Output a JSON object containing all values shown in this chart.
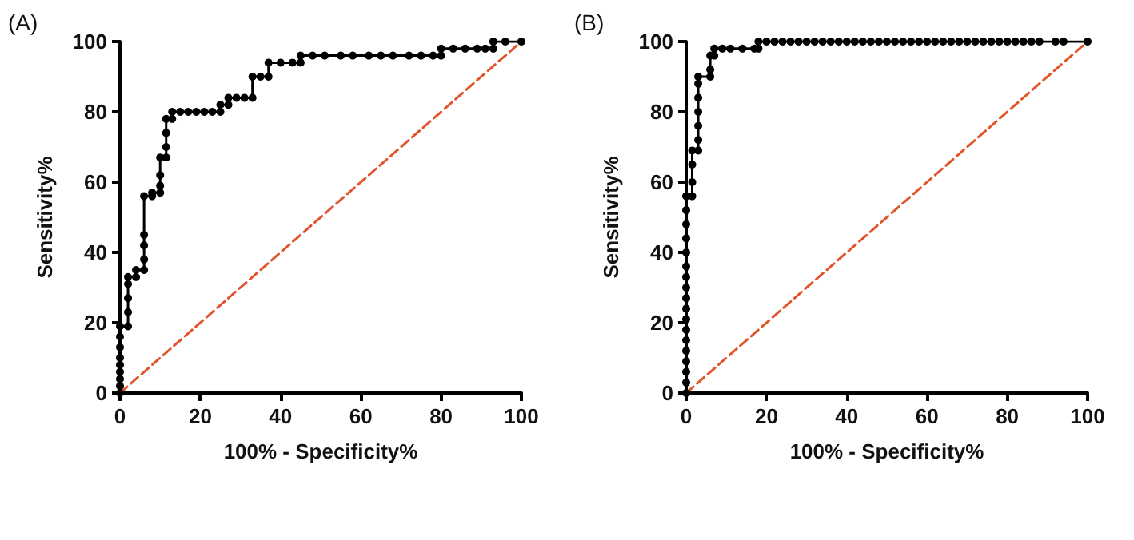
{
  "chart_data": [
    {
      "type": "line",
      "title": "(A)",
      "xlabel": "100% - Specificity%",
      "ylabel": "Sensitivity%",
      "xlim": [
        0,
        100
      ],
      "ylim": [
        0,
        100
      ],
      "xticks": [
        0,
        20,
        40,
        60,
        80,
        100
      ],
      "yticks": [
        0,
        20,
        40,
        60,
        80,
        100
      ],
      "grid": false,
      "series": [
        {
          "color": "#000000",
          "marker": "circle",
          "line_style": "solid",
          "x": [
            0,
            0,
            0,
            0,
            0,
            0,
            0,
            0,
            0,
            2,
            2,
            2,
            2,
            2,
            4,
            4,
            6,
            6,
            6,
            6,
            6,
            8,
            8,
            10,
            10,
            10,
            10,
            11.5,
            11.5,
            11.5,
            11.5,
            13,
            13,
            15,
            17,
            19,
            21,
            23,
            25,
            25,
            27,
            27,
            29,
            31,
            33,
            33,
            35,
            37,
            37,
            40,
            43,
            45,
            45,
            48,
            51,
            55,
            58,
            62,
            65,
            68,
            72,
            75,
            78,
            80,
            80,
            83,
            86,
            89,
            91,
            93,
            93,
            96,
            100
          ],
          "values": [
            0,
            2,
            4,
            6,
            8,
            10,
            13,
            16,
            19,
            19,
            23,
            27,
            31,
            33,
            33,
            35,
            35,
            38,
            42,
            45,
            56,
            56,
            57,
            57,
            59,
            62,
            67,
            67,
            70,
            74,
            78,
            78,
            80,
            80,
            80,
            80,
            80,
            80,
            80,
            82,
            82,
            84,
            84,
            84,
            84,
            90,
            90,
            90,
            94,
            94,
            94,
            94,
            96,
            96,
            96,
            96,
            96,
            96,
            96,
            96,
            96,
            96,
            96,
            96,
            98,
            98,
            98,
            98,
            98,
            98,
            100,
            100,
            100
          ]
        },
        {
          "color": "#e2542a",
          "marker": "none",
          "line_style": "dashed",
          "x": [
            0,
            100
          ],
          "values": [
            0,
            100
          ]
        }
      ]
    },
    {
      "type": "line",
      "title": "(B)",
      "xlabel": "100% - Specificity%",
      "ylabel": "Sensitivity%",
      "xlim": [
        0,
        100
      ],
      "ylim": [
        0,
        100
      ],
      "xticks": [
        0,
        20,
        40,
        60,
        80,
        100
      ],
      "yticks": [
        0,
        20,
        40,
        60,
        80,
        100
      ],
      "grid": false,
      "series": [
        {
          "color": "#000000",
          "marker": "circle",
          "line_style": "solid",
          "x": [
            0,
            0,
            0,
            0,
            0,
            0,
            0,
            0,
            0,
            0,
            0,
            0,
            0,
            0,
            0,
            0,
            0,
            0,
            1.5,
            1.5,
            1.5,
            1.5,
            3,
            3,
            3,
            3,
            3,
            3,
            3,
            6,
            6,
            6,
            7,
            7,
            9,
            11,
            14,
            17,
            18,
            18,
            20,
            22,
            24,
            26,
            28,
            30,
            32,
            34,
            36,
            38,
            40,
            42,
            44,
            46,
            48,
            50,
            52,
            54,
            56,
            58,
            60,
            62,
            64,
            66,
            68,
            70,
            72,
            74,
            76,
            78,
            80,
            82,
            84,
            86,
            88,
            92,
            94,
            100
          ],
          "values": [
            0,
            3,
            6,
            9,
            12,
            15,
            18,
            21,
            24,
            27,
            30,
            33,
            36,
            40,
            44,
            48,
            52,
            56,
            56,
            60,
            65,
            69,
            69,
            72,
            76,
            80,
            84,
            88,
            90,
            90,
            92,
            96,
            96,
            98,
            98,
            98,
            98,
            98,
            98,
            100,
            100,
            100,
            100,
            100,
            100,
            100,
            100,
            100,
            100,
            100,
            100,
            100,
            100,
            100,
            100,
            100,
            100,
            100,
            100,
            100,
            100,
            100,
            100,
            100,
            100,
            100,
            100,
            100,
            100,
            100,
            100,
            100,
            100,
            100,
            100,
            100,
            100,
            100
          ]
        },
        {
          "color": "#e2542a",
          "marker": "none",
          "line_style": "dashed",
          "x": [
            0,
            100
          ],
          "values": [
            0,
            100
          ]
        }
      ]
    }
  ]
}
